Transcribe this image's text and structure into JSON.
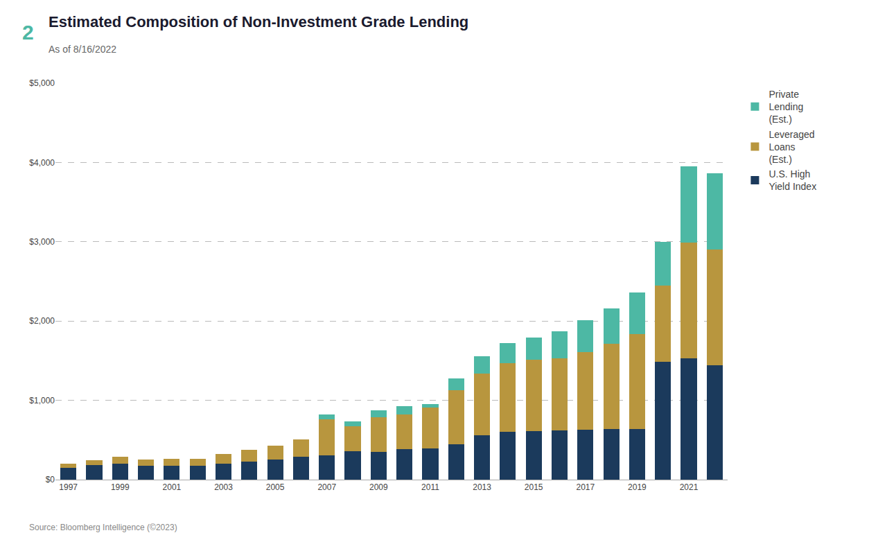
{
  "chart_data": {
    "type": "bar",
    "title": "Estimated Composition of Non-Investment Grade Lending",
    "subtitle": "As of 8/16/2022",
    "annotations": [
      "2",
      "Source: Bloomberg Intelligence (©2023)"
    ],
    "categories": [
      "1997",
      null,
      "1999",
      null,
      "2001",
      null,
      "2003",
      null,
      "2005",
      null,
      "2007",
      null,
      "2009",
      null,
      "2011",
      null,
      "2013",
      null,
      "2015",
      null,
      "2017",
      null,
      "2019",
      null,
      "2021",
      null
    ],
    "series": [
      {
        "name": "U.S. High\nYield Index",
        "color": "#1b3a5c",
        "values": [
          150,
          185,
          200,
          175,
          175,
          175,
          200,
          230,
          255,
          290,
          310,
          360,
          350,
          385,
          395,
          450,
          560,
          600,
          610,
          620,
          630,
          640,
          640,
          1490,
          1530,
          1440
        ]
      },
      {
        "name": "Leveraged\nLoans\n(Est.)",
        "color": "#b8963e",
        "values": [
          50,
          60,
          90,
          80,
          90,
          90,
          120,
          145,
          175,
          220,
          450,
          310,
          440,
          440,
          510,
          680,
          780,
          870,
          900,
          910,
          980,
          1070,
          1200,
          960,
          1460,
          1460
        ]
      },
      {
        "name": "Private\nLending\n(Est.)",
        "color": "#4db8a4",
        "values": [
          0,
          0,
          0,
          0,
          0,
          0,
          0,
          0,
          0,
          0,
          60,
          60,
          80,
          100,
          50,
          150,
          220,
          250,
          280,
          340,
          400,
          450,
          520,
          550,
          960,
          960
        ]
      }
    ],
    "ylim": [
      0,
      5000
    ],
    "yticks": [
      {
        "value": 0,
        "label": "$0"
      },
      {
        "value": 1000,
        "label": "$1,000"
      },
      {
        "value": 2000,
        "label": "$2,000"
      },
      {
        "value": 3000,
        "label": "$3,000"
      },
      {
        "value": 4000,
        "label": "$4,000"
      },
      {
        "value": 5000,
        "label": "$5,000"
      }
    ],
    "grid": true,
    "stacked": true,
    "legend": "right"
  }
}
